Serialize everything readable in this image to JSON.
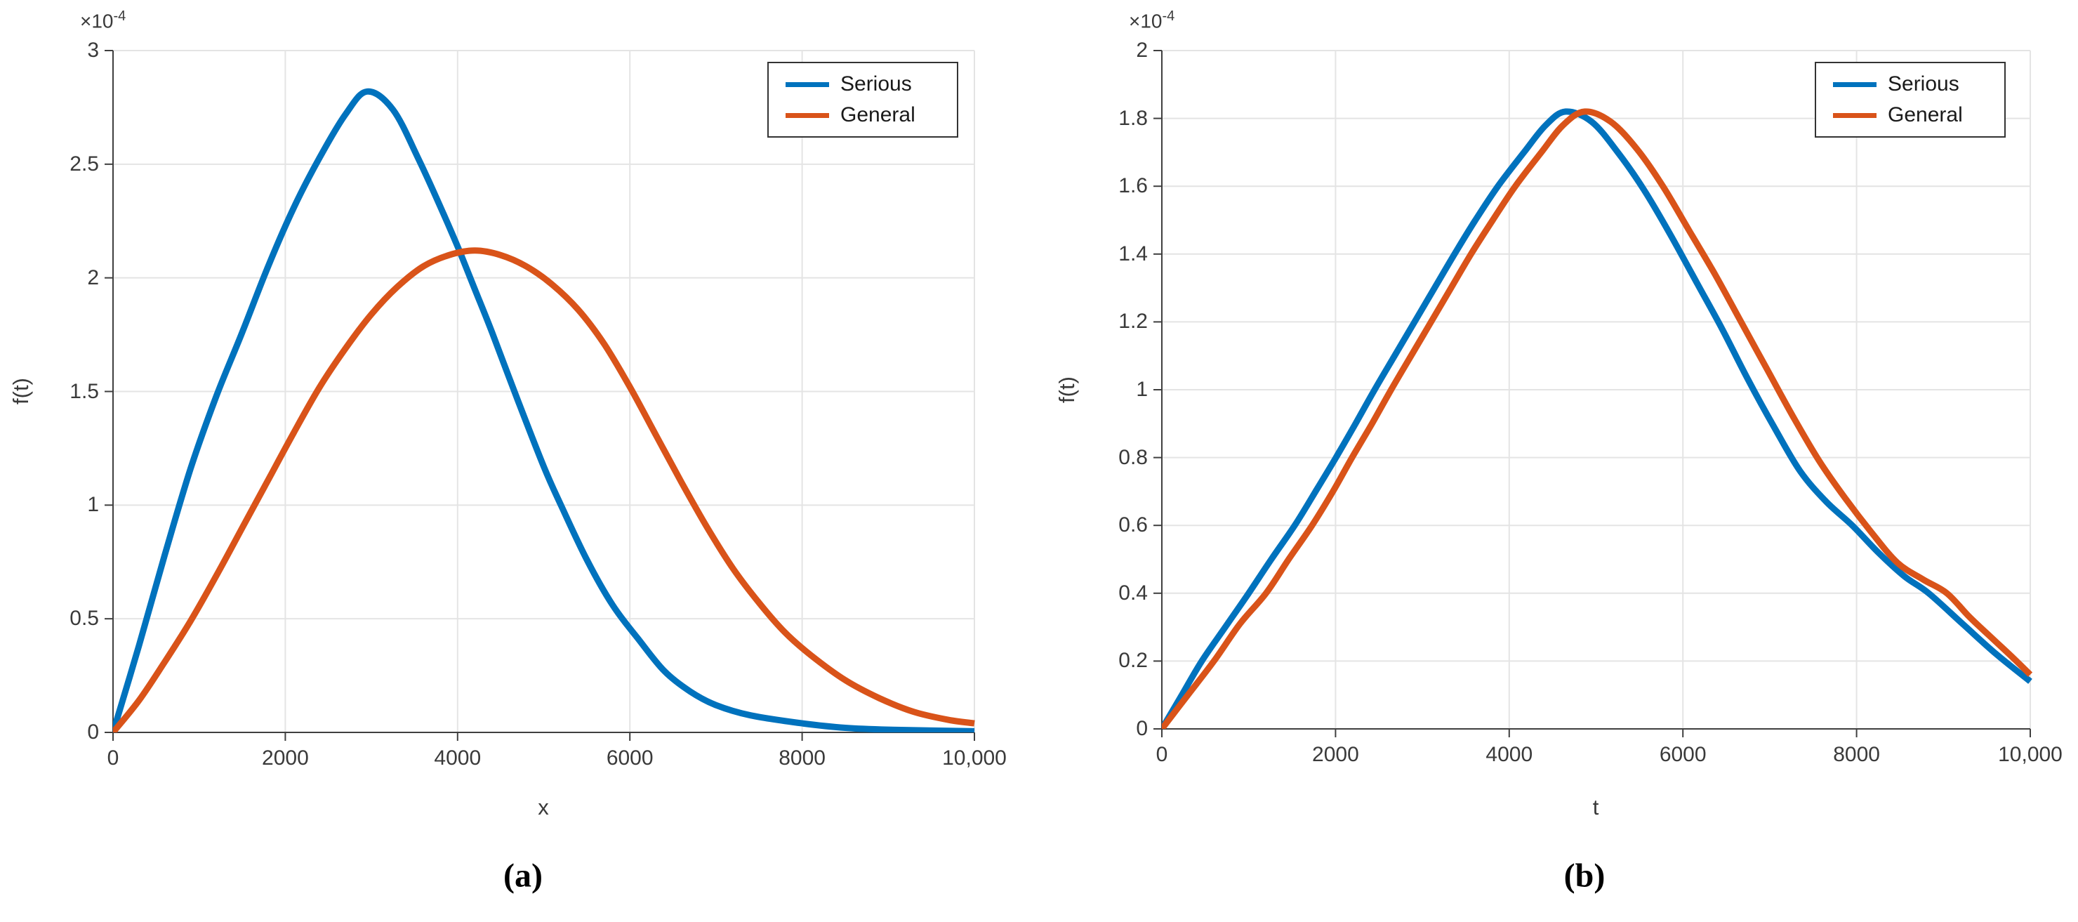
{
  "figure": {
    "caption_a": "(a)",
    "caption_b": "(b)"
  },
  "colors": {
    "serious": "#0072BD",
    "general": "#D95319",
    "grid": "#E4E4E4",
    "axis": "#3F3F3F",
    "text": "#3A3A3A"
  },
  "chart_data": [
    {
      "id": "a",
      "type": "line",
      "xlabel": "x",
      "ylabel": "f(t)",
      "exponent_mantissa": "×10",
      "exponent_power": "-4",
      "y_scale_factor": "1e-4",
      "xlim": [
        0,
        10000
      ],
      "ylim": [
        0,
        0.0003
      ],
      "grid": true,
      "legend_position": "top-right",
      "legend": [
        "Serious",
        "General"
      ],
      "x_ticks": [
        0,
        2000,
        4000,
        6000,
        8000,
        10000
      ],
      "x_tick_labels": [
        "0",
        "2000",
        "4000",
        "6000",
        "8000",
        "10,000"
      ],
      "y_ticks_e4": [
        0,
        0.5,
        1,
        1.5,
        2,
        2.5,
        3
      ],
      "y_tick_labels": [
        "0",
        "0.5",
        "1",
        "1.5",
        "2",
        "2.5",
        "3"
      ],
      "series": [
        {
          "name": "Serious",
          "color_key": "serious",
          "peak": {
            "x": 2950,
            "f_e4": 2.82
          },
          "points_e4": [
            [
              0,
              0
            ],
            [
              300,
              0.38
            ],
            [
              600,
              0.78
            ],
            [
              900,
              1.16
            ],
            [
              1200,
              1.48
            ],
            [
              1500,
              1.76
            ],
            [
              1800,
              2.05
            ],
            [
              2100,
              2.31
            ],
            [
              2400,
              2.53
            ],
            [
              2700,
              2.72
            ],
            [
              2950,
              2.82
            ],
            [
              3250,
              2.74
            ],
            [
              3550,
              2.52
            ],
            [
              3850,
              2.27
            ],
            [
              4020,
              2.12
            ],
            [
              4200,
              1.95
            ],
            [
              4400,
              1.76
            ],
            [
              4700,
              1.46
            ],
            [
              5000,
              1.17
            ],
            [
              5200,
              1.0
            ],
            [
              5500,
              0.76
            ],
            [
              5800,
              0.56
            ],
            [
              6100,
              0.41
            ],
            [
              6400,
              0.27
            ],
            [
              6700,
              0.18
            ],
            [
              7000,
              0.12
            ],
            [
              7400,
              0.075
            ],
            [
              8000,
              0.04
            ],
            [
              8500,
              0.02
            ],
            [
              9000,
              0.012
            ],
            [
              10000,
              0.005
            ]
          ]
        },
        {
          "name": "General",
          "color_key": "general",
          "peak": {
            "x": 4200,
            "f_e4": 2.12
          },
          "points_e4": [
            [
              0,
              0
            ],
            [
              300,
              0.14
            ],
            [
              600,
              0.31
            ],
            [
              900,
              0.49
            ],
            [
              1200,
              0.69
            ],
            [
              1500,
              0.9
            ],
            [
              1800,
              1.11
            ],
            [
              2100,
              1.32
            ],
            [
              2400,
              1.52
            ],
            [
              2700,
              1.69
            ],
            [
              3000,
              1.84
            ],
            [
              3300,
              1.96
            ],
            [
              3600,
              2.05
            ],
            [
              3900,
              2.1
            ],
            [
              4200,
              2.12
            ],
            [
              4500,
              2.1
            ],
            [
              4800,
              2.05
            ],
            [
              5100,
              1.97
            ],
            [
              5400,
              1.86
            ],
            [
              5700,
              1.71
            ],
            [
              6000,
              1.52
            ],
            [
              6300,
              1.31
            ],
            [
              6600,
              1.1
            ],
            [
              6900,
              0.9
            ],
            [
              7200,
              0.72
            ],
            [
              7500,
              0.57
            ],
            [
              7800,
              0.44
            ],
            [
              8100,
              0.34
            ],
            [
              8500,
              0.23
            ],
            [
              8900,
              0.15
            ],
            [
              9300,
              0.09
            ],
            [
              9700,
              0.055
            ],
            [
              10000,
              0.04
            ]
          ]
        }
      ]
    },
    {
      "id": "b",
      "type": "line",
      "xlabel": "t",
      "ylabel": "f(t)",
      "exponent_mantissa": "×10",
      "exponent_power": "-4",
      "y_scale_factor": "1e-4",
      "xlim": [
        0,
        10000
      ],
      "ylim": [
        0,
        0.0002
      ],
      "grid": true,
      "legend_position": "top-right",
      "legend": [
        "Serious",
        "General"
      ],
      "x_ticks": [
        0,
        2000,
        4000,
        6000,
        8000,
        10000
      ],
      "x_tick_labels": [
        "0",
        "2000",
        "4000",
        "6000",
        "8000",
        "10,000"
      ],
      "y_ticks_e4": [
        0,
        0.2,
        0.4,
        0.6,
        0.8,
        1,
        1.2,
        1.4,
        1.6,
        1.8,
        2
      ],
      "y_tick_labels": [
        "0",
        "0.2",
        "0.4",
        "0.6",
        "0.8",
        "1",
        "1.2",
        "1.4",
        "1.6",
        "1.8",
        "2"
      ],
      "series": [
        {
          "name": "Serious",
          "color_key": "serious",
          "peak": {
            "x": 4650,
            "f_e4": 1.82
          },
          "points_e4": [
            [
              0,
              0
            ],
            [
              230,
              0.1
            ],
            [
              460,
              0.2
            ],
            [
              730,
              0.3
            ],
            [
              1000,
              0.4
            ],
            [
              1260,
              0.5
            ],
            [
              1530,
              0.6
            ],
            [
              1770,
              0.7
            ],
            [
              2005,
              0.8
            ],
            [
              2230,
              0.9
            ],
            [
              2450,
              1.0
            ],
            [
              2680,
              1.1
            ],
            [
              2910,
              1.2
            ],
            [
              3140,
              1.3
            ],
            [
              3370,
              1.4
            ],
            [
              3610,
              1.5
            ],
            [
              3870,
              1.6
            ],
            [
              4170,
              1.7
            ],
            [
              4420,
              1.78
            ],
            [
              4650,
              1.82
            ],
            [
              4950,
              1.79
            ],
            [
              5250,
              1.7
            ],
            [
              5550,
              1.59
            ],
            [
              5850,
              1.46
            ],
            [
              6150,
              1.32
            ],
            [
              6450,
              1.18
            ],
            [
              6750,
              1.03
            ],
            [
              7050,
              0.89
            ],
            [
              7350,
              0.76
            ],
            [
              7650,
              0.67
            ],
            [
              7950,
              0.6
            ],
            [
              8250,
              0.52
            ],
            [
              8550,
              0.45
            ],
            [
              8830,
              0.4
            ],
            [
              9220,
              0.31
            ],
            [
              9610,
              0.22
            ],
            [
              10000,
              0.14
            ]
          ]
        },
        {
          "name": "General",
          "color_key": "general",
          "peak": {
            "x": 4870,
            "f_e4": 1.82
          },
          "points_e4": [
            [
              0,
              0
            ],
            [
              300,
              0.1
            ],
            [
              600,
              0.2
            ],
            [
              900,
              0.31
            ],
            [
              1200,
              0.4
            ],
            [
              1460,
              0.5
            ],
            [
              1730,
              0.6
            ],
            [
              1970,
              0.7
            ],
            [
              2190,
              0.8
            ],
            [
              2420,
              0.9
            ],
            [
              2640,
              1.0
            ],
            [
              2870,
              1.1
            ],
            [
              3100,
              1.2
            ],
            [
              3330,
              1.3
            ],
            [
              3560,
              1.4
            ],
            [
              3810,
              1.5
            ],
            [
              4070,
              1.6
            ],
            [
              4370,
              1.7
            ],
            [
              4620,
              1.78
            ],
            [
              4870,
              1.82
            ],
            [
              5170,
              1.79
            ],
            [
              5470,
              1.71
            ],
            [
              5770,
              1.6
            ],
            [
              6070,
              1.47
            ],
            [
              6370,
              1.34
            ],
            [
              6670,
              1.2
            ],
            [
              6970,
              1.06
            ],
            [
              7270,
              0.92
            ],
            [
              7570,
              0.79
            ],
            [
              7870,
              0.68
            ],
            [
              8170,
              0.58
            ],
            [
              8470,
              0.49
            ],
            [
              8770,
              0.44
            ],
            [
              9040,
              0.4
            ],
            [
              9300,
              0.33
            ],
            [
              9550,
              0.27
            ],
            [
              9800,
              0.21
            ],
            [
              10000,
              0.16
            ]
          ]
        }
      ]
    }
  ]
}
